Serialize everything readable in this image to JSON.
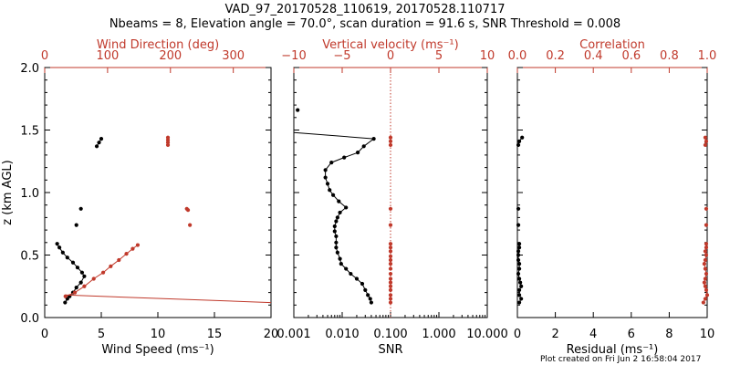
{
  "title_line1": "VAD_97_20170528_110619, 20170528.110717",
  "title_line2": "Nbeams = 8, Elevation angle = 70.0°, scan duration = 91.6 s, SNR Threshold = 0.008",
  "footer": "Plot created on Fri Jun  2 16:58:04 2017",
  "colors": {
    "primary": "#000000",
    "secondary": "#c0392b"
  },
  "chart_data": [
    {
      "type": "scatter",
      "name": "wind-panel",
      "ylabel": "z (km AGL)",
      "ylim": [
        0,
        2.0
      ],
      "yticks": [
        "0.0",
        "0.5",
        "1.0",
        "1.5",
        "2.0"
      ],
      "ytick_values": [
        0,
        0.5,
        1.0,
        1.5,
        2.0
      ],
      "bottom_axis": {
        "label": "Wind Speed (ms⁻¹)",
        "lim": [
          0,
          20
        ],
        "ticks": [
          "0",
          "5",
          "10",
          "15",
          "20"
        ],
        "tick_values": [
          0,
          5,
          10,
          15,
          20
        ]
      },
      "top_axis": {
        "label": "Wind Direction (deg)",
        "lim": [
          0,
          360
        ],
        "ticks": [
          "0",
          "100",
          "200",
          "300"
        ],
        "tick_values": [
          0,
          100,
          200,
          300
        ]
      },
      "series": [
        {
          "axis": "bottom",
          "style": "line-markers",
          "color": "primary",
          "points": [
            [
              1.8,
              0.12
            ],
            [
              2.0,
              0.15
            ],
            [
              2.2,
              0.17
            ],
            [
              2.5,
              0.2
            ],
            [
              2.8,
              0.24
            ],
            [
              3.2,
              0.28
            ],
            [
              3.5,
              0.33
            ],
            [
              3.3,
              0.36
            ],
            [
              2.9,
              0.4
            ],
            [
              2.5,
              0.44
            ],
            [
              2.0,
              0.48
            ],
            [
              1.6,
              0.52
            ],
            [
              1.3,
              0.56
            ],
            [
              1.1,
              0.59
            ]
          ]
        },
        {
          "axis": "bottom",
          "style": "line-markers",
          "color": "primary",
          "points": [
            [
              2.8,
              0.74
            ]
          ]
        },
        {
          "axis": "bottom",
          "style": "line-markers",
          "color": "primary",
          "points": [
            [
              3.2,
              0.87
            ]
          ]
        },
        {
          "axis": "bottom",
          "style": "line-markers",
          "color": "primary",
          "points": [
            [
              4.6,
              1.37
            ],
            [
              4.8,
              1.4
            ],
            [
              5.0,
              1.43
            ]
          ]
        },
        {
          "axis": "top",
          "style": "line-markers",
          "color": "secondary",
          "points": [
            [
              33,
              0.17
            ],
            [
              48,
              0.2
            ],
            [
              63,
              0.25
            ],
            [
              78,
              0.31
            ],
            [
              93,
              0.36
            ],
            [
              105,
              0.41
            ],
            [
              118,
              0.46
            ],
            [
              130,
              0.51
            ],
            [
              140,
              0.55
            ],
            [
              148,
              0.58
            ]
          ]
        },
        {
          "axis": "top",
          "style": "line",
          "color": "secondary",
          "points": [
            [
              33,
              0.18
            ],
            [
              360,
              0.12
            ]
          ]
        },
        {
          "axis": "top",
          "style": "line-markers",
          "color": "secondary",
          "points": [
            [
              226,
              0.87
            ],
            [
              228,
              0.86
            ]
          ]
        },
        {
          "axis": "top",
          "style": "line-markers",
          "color": "secondary",
          "points": [
            [
              231,
              0.74
            ]
          ]
        },
        {
          "axis": "top",
          "style": "line-markers",
          "color": "secondary",
          "points": [
            [
              196,
              1.38
            ],
            [
              196,
              1.4
            ],
            [
              196,
              1.42
            ],
            [
              196,
              1.44
            ]
          ]
        }
      ]
    },
    {
      "type": "line",
      "name": "snr-panel",
      "ylim": [
        0,
        2.0
      ],
      "bottom_axis": {
        "label": "SNR",
        "scale": "log",
        "lim": [
          0.001,
          10.0
        ],
        "ticks": [
          "0.001",
          "0.010",
          "0.100",
          "1.000",
          "10.000"
        ],
        "tick_values": [
          0.001,
          0.01,
          0.1,
          1.0,
          10.0
        ]
      },
      "top_axis": {
        "label": "Vertical velocity (ms⁻¹)",
        "lim": [
          -10,
          10
        ],
        "ticks": [
          "−10",
          "−5",
          "0",
          "5",
          "10"
        ],
        "tick_values": [
          -10,
          -5,
          0,
          5,
          10
        ]
      },
      "reference_line": {
        "axis": "top",
        "x": 0,
        "style": "dotted",
        "color": "secondary"
      },
      "series": [
        {
          "axis": "bottom",
          "style": "line-markers",
          "color": "primary",
          "points": [
            [
              0.0012,
              1.66
            ]
          ]
        },
        {
          "axis": "bottom",
          "style": "line",
          "color": "primary",
          "points": [
            [
              0.001,
              1.48
            ],
            [
              0.045,
              1.43
            ]
          ]
        },
        {
          "axis": "bottom",
          "style": "line-markers",
          "color": "primary",
          "points": [
            [
              0.045,
              1.43
            ],
            [
              0.028,
              1.37
            ],
            [
              0.021,
              1.32
            ],
            [
              0.011,
              1.28
            ],
            [
              0.006,
              1.24
            ],
            [
              0.0045,
              1.18
            ],
            [
              0.0045,
              1.12
            ],
            [
              0.005,
              1.07
            ],
            [
              0.0055,
              1.02
            ],
            [
              0.0065,
              0.98
            ],
            [
              0.0085,
              0.93
            ],
            [
              0.012,
              0.88
            ],
            [
              0.009,
              0.84
            ],
            [
              0.008,
              0.8
            ],
            [
              0.0075,
              0.77
            ],
            [
              0.007,
              0.73
            ],
            [
              0.007,
              0.69
            ],
            [
              0.0075,
              0.65
            ],
            [
              0.0075,
              0.6
            ],
            [
              0.0075,
              0.56
            ],
            [
              0.008,
              0.52
            ],
            [
              0.009,
              0.47
            ],
            [
              0.0095,
              0.43
            ],
            [
              0.012,
              0.39
            ],
            [
              0.015,
              0.35
            ],
            [
              0.02,
              0.31
            ],
            [
              0.026,
              0.27
            ],
            [
              0.03,
              0.22
            ],
            [
              0.034,
              0.18
            ],
            [
              0.038,
              0.15
            ],
            [
              0.04,
              0.12
            ]
          ]
        },
        {
          "axis": "top",
          "style": "markers",
          "color": "secondary",
          "points": [
            [
              0,
              0.12
            ],
            [
              0,
              0.15
            ],
            [
              0,
              0.18
            ],
            [
              0,
              0.22
            ],
            [
              0,
              0.25
            ],
            [
              0,
              0.28
            ],
            [
              0,
              0.31
            ],
            [
              0,
              0.35
            ],
            [
              0,
              0.39
            ],
            [
              0,
              0.43
            ],
            [
              0,
              0.46
            ],
            [
              0,
              0.49
            ],
            [
              0,
              0.53
            ],
            [
              0,
              0.56
            ],
            [
              0,
              0.59
            ],
            [
              0,
              0.74
            ],
            [
              0,
              0.87
            ],
            [
              0,
              1.38
            ],
            [
              0,
              1.41
            ],
            [
              0,
              1.44
            ]
          ]
        }
      ]
    },
    {
      "type": "scatter",
      "name": "residual-panel",
      "ylim": [
        0,
        2.0
      ],
      "bottom_axis": {
        "label": "Residual (ms⁻¹)",
        "lim": [
          0,
          10
        ],
        "ticks": [
          "0",
          "2",
          "4",
          "6",
          "8",
          "10"
        ],
        "tick_values": [
          0,
          2,
          4,
          6,
          8,
          10
        ]
      },
      "top_axis": {
        "label": "Correlation",
        "lim": [
          0,
          1.0
        ],
        "ticks": [
          "0.0",
          "0.2",
          "0.4",
          "0.6",
          "0.8",
          "1.0"
        ],
        "tick_values": [
          0,
          0.2,
          0.4,
          0.6,
          0.8,
          1.0
        ]
      },
      "series": [
        {
          "axis": "bottom",
          "style": "line-markers",
          "color": "primary",
          "points": [
            [
              0.1,
              0.12
            ],
            [
              0.2,
              0.15
            ],
            [
              0.1,
              0.18
            ],
            [
              0.1,
              0.22
            ],
            [
              0.2,
              0.25
            ],
            [
              0.15,
              0.28
            ],
            [
              0.1,
              0.31
            ],
            [
              0.05,
              0.35
            ],
            [
              0.1,
              0.39
            ],
            [
              0.1,
              0.43
            ],
            [
              0.05,
              0.46
            ],
            [
              0.05,
              0.5
            ],
            [
              0.05,
              0.53
            ],
            [
              0.1,
              0.56
            ],
            [
              0.1,
              0.59
            ]
          ]
        },
        {
          "axis": "bottom",
          "style": "line-markers",
          "color": "primary",
          "points": [
            [
              0.05,
              0.74
            ]
          ]
        },
        {
          "axis": "bottom",
          "style": "line-markers",
          "color": "primary",
          "points": [
            [
              0.05,
              0.87
            ]
          ]
        },
        {
          "axis": "bottom",
          "style": "line-markers",
          "color": "primary",
          "points": [
            [
              0.05,
              1.38
            ],
            [
              0.1,
              1.41
            ],
            [
              0.25,
              1.44
            ]
          ]
        },
        {
          "axis": "top",
          "style": "line-markers",
          "color": "secondary",
          "points": [
            [
              0.98,
              0.12
            ],
            [
              0.99,
              0.15
            ],
            [
              1.0,
              0.18
            ],
            [
              0.995,
              0.22
            ],
            [
              0.99,
              0.25
            ],
            [
              0.985,
              0.28
            ],
            [
              0.99,
              0.31
            ],
            [
              0.995,
              0.35
            ],
            [
              0.99,
              0.39
            ],
            [
              0.985,
              0.43
            ],
            [
              0.99,
              0.46
            ],
            [
              0.995,
              0.5
            ],
            [
              0.99,
              0.53
            ],
            [
              0.995,
              0.56
            ],
            [
              0.995,
              0.59
            ]
          ]
        },
        {
          "axis": "top",
          "style": "line-markers",
          "color": "secondary",
          "points": [
            [
              0.995,
              0.74
            ]
          ]
        },
        {
          "axis": "top",
          "style": "line-markers",
          "color": "secondary",
          "points": [
            [
              0.995,
              0.87
            ]
          ]
        },
        {
          "axis": "top",
          "style": "line-markers",
          "color": "secondary",
          "points": [
            [
              0.99,
              1.38
            ],
            [
              0.995,
              1.41
            ],
            [
              0.99,
              1.44
            ]
          ]
        }
      ]
    }
  ]
}
